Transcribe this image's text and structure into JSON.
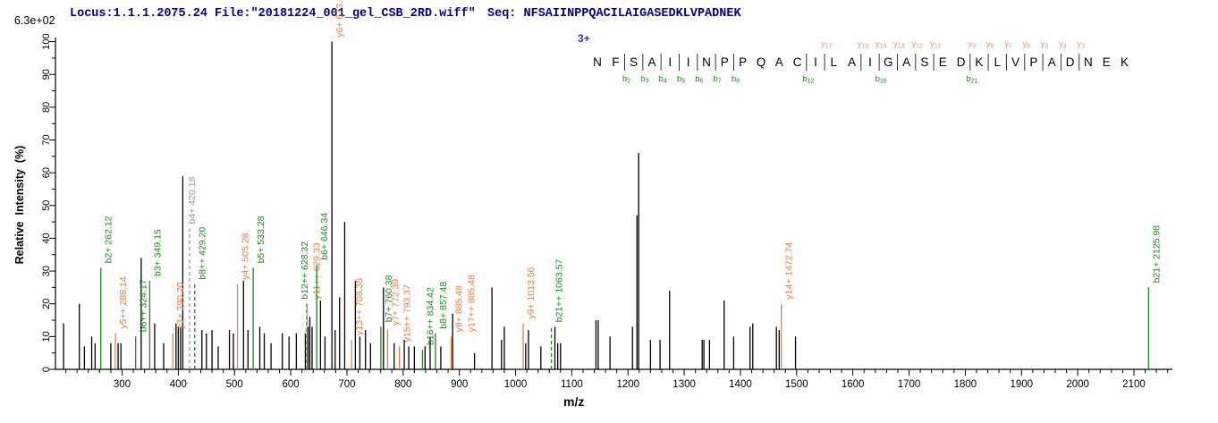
{
  "header": {
    "locus_file": "Locus:1.1.1.2075.24 File:\"20181224_001_gel_CSB_2RD.wiff\"",
    "seq_label": "Seq: NFSAIINPPQACILAIGASEDKLVPADNEK"
  },
  "scale_note": "6.3e+02",
  "sequence_panel": {
    "charge": "3+",
    "residues": "NFSAIINPPQACILAIGASEDKLVPADNEK",
    "b_ions": [
      2,
      3,
      4,
      5,
      6,
      7,
      8,
      12,
      16,
      21
    ],
    "y_ions": [
      17,
      15,
      14,
      13,
      12,
      11,
      9,
      8,
      7,
      6,
      5,
      4,
      3
    ]
  },
  "colors": {
    "b_ion": "#1e8a1e",
    "y_ion": "#ed7b43",
    "y_ion_light": "#f4926f",
    "missed": "#9a9a9a",
    "peak": "#000000",
    "header_text": "#00008b",
    "charge_text": "#2233cc"
  },
  "chart_data": {
    "type": "bar",
    "title": "MS/MS fragmentation spectrum",
    "xlabel": "m/z",
    "ylabel": "Relative  Intensity  (%)",
    "xlim": [
      182,
      2172
    ],
    "ylim": [
      0,
      100
    ],
    "x_major_ticks": [
      300,
      400,
      500,
      600,
      700,
      800,
      900,
      1000,
      1100,
      1200,
      1300,
      1400,
      1500,
      1600,
      1700,
      1800,
      1900,
      2000,
      2100
    ],
    "y_major_ticks": [
      0,
      10,
      20,
      30,
      40,
      50,
      60,
      70,
      80,
      90,
      100
    ],
    "annotated_peaks": [
      {
        "mz": 262.12,
        "intensity": 31,
        "label": "b2+ 262.12",
        "type": "b"
      },
      {
        "mz": 288.14,
        "intensity": 11,
        "label": "y5++ 288.14",
        "type": "y"
      },
      {
        "mz": 324.17,
        "intensity": 10,
        "label": "b6++ 324.17",
        "type": "b"
      },
      {
        "mz": 349.15,
        "intensity": 27,
        "label": "b3+ 349.15",
        "type": "b"
      },
      {
        "mz": 390.2,
        "intensity": 11,
        "label": "y3+ 390.20",
        "type": "y"
      },
      {
        "mz": 420.18,
        "intensity": 43,
        "label": "b4+ 420.18",
        "type": "missed",
        "dashed": true,
        "dx": -6
      },
      {
        "mz": 429.2,
        "intensity": 26,
        "label": "b8++ 429.20",
        "type": "b",
        "dashed": true
      },
      {
        "mz": 505.28,
        "intensity": 26,
        "label": "y4+ 505.28",
        "type": "y"
      },
      {
        "mz": 533.28,
        "intensity": 31,
        "label": "b5+ 533.28",
        "type": "b"
      },
      {
        "mz": 628.32,
        "intensity": 20,
        "label": "b12++ 628.32",
        "type": "b",
        "dashed": true,
        "dx": -11
      },
      {
        "mz": 629.33,
        "intensity": 20,
        "label": "y11++ 629.33",
        "type": "y",
        "dx": 2
      },
      {
        "mz": 646.34,
        "intensity": 32,
        "label": "b6+ 646.34",
        "type": "b"
      },
      {
        "mz": 673.32,
        "intensity": 100,
        "label": "y6+ 673.32",
        "type": "y",
        "line": "black"
      },
      {
        "mz": 708.35,
        "intensity": 9,
        "label": "y13++ 708.35",
        "type": "y"
      },
      {
        "mz": 760.38,
        "intensity": 13,
        "label": "b7+ 760.38",
        "type": "b"
      },
      {
        "mz": 772.39,
        "intensity": 12,
        "label": "y7+ 772.39",
        "type": "y"
      },
      {
        "mz": 793.37,
        "intensity": 7,
        "label": "y15++ 793.37",
        "type": "y"
      },
      {
        "mz": 834.42,
        "intensity": 6,
        "label": "b16++ 834.42",
        "type": "b"
      },
      {
        "mz": 857.48,
        "intensity": 11,
        "label": "b8+ 857.48",
        "type": "b"
      },
      {
        "mz": 885.48,
        "intensity": 10,
        "label": "y8+ 885.48",
        "label2": "y17++ 885.48",
        "type": "y"
      },
      {
        "mz": 1013.56,
        "intensity": 14,
        "label": "y9+ 1013.56",
        "type": "y"
      },
      {
        "mz": 1063.57,
        "intensity": 13,
        "label": "b21++ 1063.57",
        "type": "b",
        "dashed": true
      },
      {
        "mz": 1472.74,
        "intensity": 20,
        "label": "y14+ 1472.74",
        "type": "y"
      },
      {
        "mz": 2125.98,
        "intensity": 25,
        "label": "b21+ 2125.98",
        "type": "b"
      }
    ],
    "peaks": [
      [
        196,
        14
      ],
      [
        224,
        20
      ],
      [
        233,
        7
      ],
      [
        246,
        10
      ],
      [
        252,
        8
      ],
      [
        280,
        8
      ],
      [
        293,
        8
      ],
      [
        298,
        8
      ],
      [
        334,
        34
      ],
      [
        358,
        14
      ],
      [
        374,
        8
      ],
      [
        396,
        14
      ],
      [
        400,
        13
      ],
      [
        404,
        13
      ],
      [
        408,
        59
      ],
      [
        442,
        12
      ],
      [
        450,
        11
      ],
      [
        460,
        12
      ],
      [
        471,
        7
      ],
      [
        491,
        12
      ],
      [
        498,
        11
      ],
      [
        516,
        27
      ],
      [
        524,
        12
      ],
      [
        545,
        13
      ],
      [
        553,
        11
      ],
      [
        565,
        8
      ],
      [
        585,
        11
      ],
      [
        597,
        10
      ],
      [
        610,
        11
      ],
      [
        626,
        11
      ],
      [
        631,
        13
      ],
      [
        634,
        16
      ],
      [
        638,
        13
      ],
      [
        653,
        21
      ],
      [
        661,
        10
      ],
      [
        679,
        12
      ],
      [
        687,
        22
      ],
      [
        696,
        45
      ],
      [
        715,
        27
      ],
      [
        723,
        10
      ],
      [
        733,
        12
      ],
      [
        742,
        8
      ],
      [
        765,
        25
      ],
      [
        784,
        8
      ],
      [
        802,
        9
      ],
      [
        810,
        7
      ],
      [
        820,
        7
      ],
      [
        839,
        7
      ],
      [
        848,
        10
      ],
      [
        867,
        7
      ],
      [
        888,
        17
      ],
      [
        927,
        5
      ],
      [
        958,
        25
      ],
      [
        975,
        9
      ],
      [
        980,
        13
      ],
      [
        1018,
        8
      ],
      [
        1023,
        12
      ],
      [
        1045,
        7
      ],
      [
        1070,
        13
      ],
      [
        1075,
        8
      ],
      [
        1080,
        8
      ],
      [
        1143,
        15
      ],
      [
        1147,
        15
      ],
      [
        1168,
        10
      ],
      [
        1208,
        13
      ],
      [
        1216,
        47
      ],
      [
        1219,
        66
      ],
      [
        1240,
        9
      ],
      [
        1257,
        9
      ],
      [
        1274,
        24
      ],
      [
        1332,
        9
      ],
      [
        1335,
        9
      ],
      [
        1345,
        9
      ],
      [
        1371,
        21
      ],
      [
        1388,
        10
      ],
      [
        1417,
        13
      ],
      [
        1422,
        14
      ],
      [
        1464,
        13
      ],
      [
        1469,
        12
      ],
      [
        1498,
        10
      ]
    ]
  }
}
